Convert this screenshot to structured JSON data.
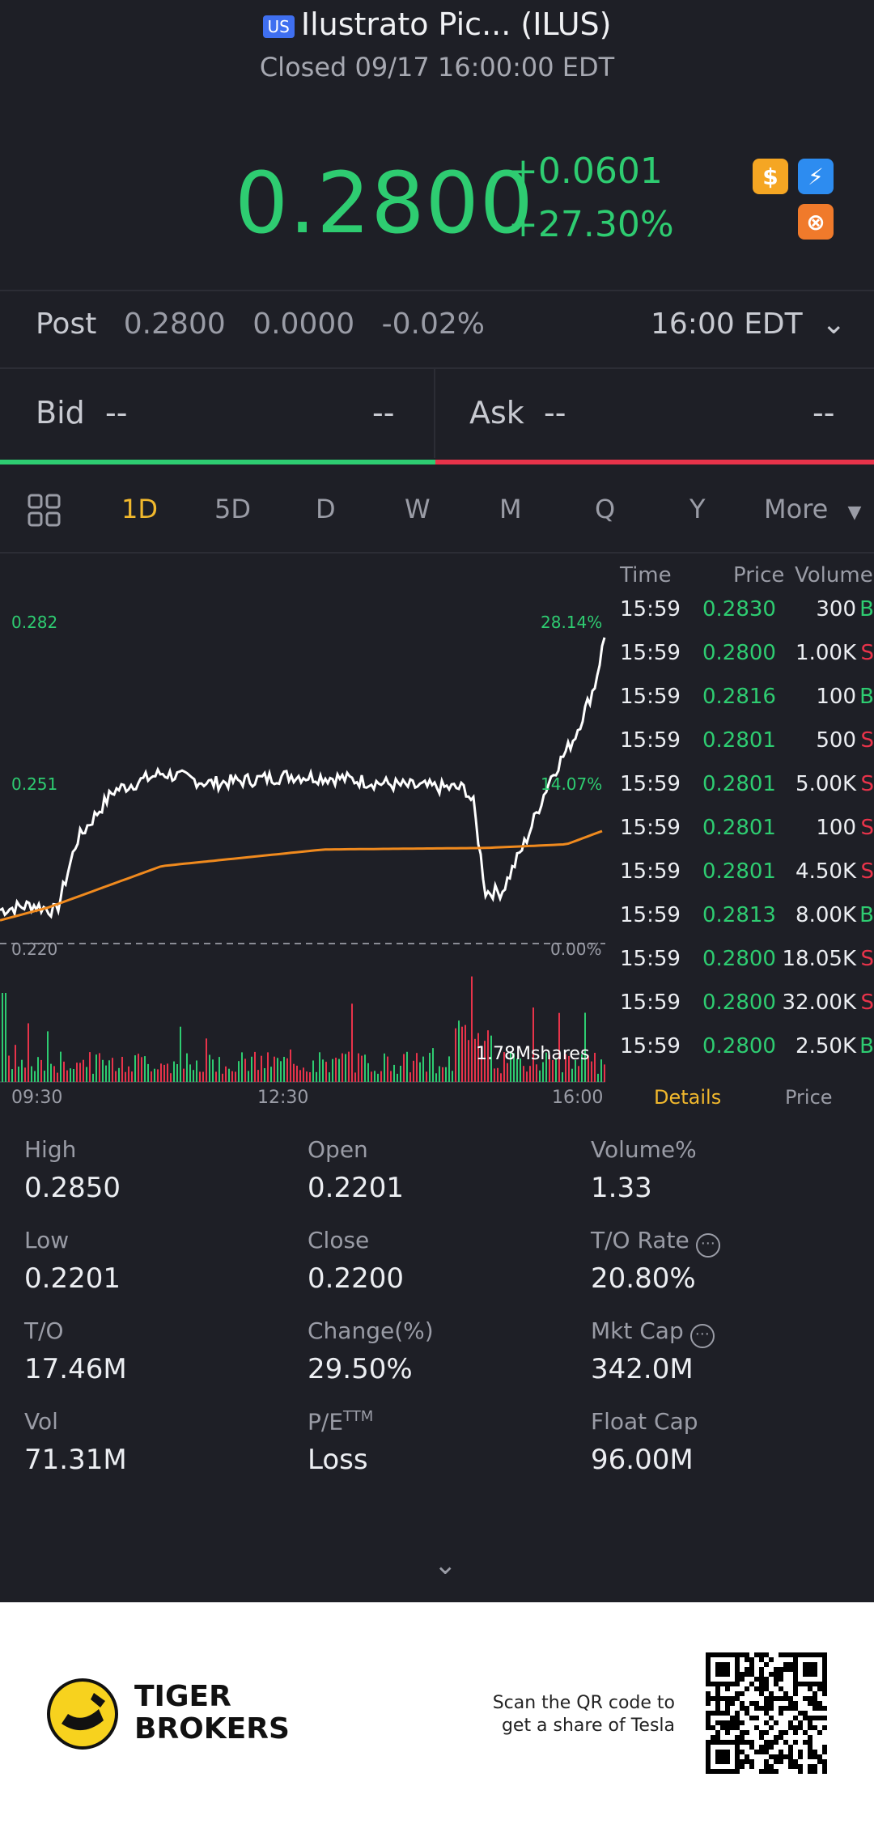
{
  "header": {
    "market_badge": "US",
    "title": "Ilustrato Pic... (ILUS)",
    "status": "Closed 09/17 16:00:00 EDT"
  },
  "quote": {
    "price": "0.2800",
    "change": "+0.0601",
    "change_pct": "+27.30%",
    "icons": [
      "dollar-icon",
      "lightning-icon",
      "basketball-icon"
    ]
  },
  "post": {
    "label": "Post",
    "price": "0.2800",
    "change": "0.0000",
    "change_pct": "-0.02%",
    "time": "16:00 EDT"
  },
  "bid": {
    "label": "Bid",
    "price": "--",
    "size": "--"
  },
  "ask": {
    "label": "Ask",
    "price": "--",
    "size": "--"
  },
  "tabs": [
    "1D",
    "5D",
    "D",
    "W",
    "M",
    "Q",
    "Y",
    "More"
  ],
  "active_tab": "1D",
  "chart": {
    "y_top": "0.282",
    "y_mid": "0.251",
    "y_bottom": "0.220",
    "pct_top": "28.14%",
    "pct_mid": "14.07%",
    "pct_bottom": "0.00%",
    "volume_label": "1.78Mshares",
    "x_labels": [
      "09:30",
      "12:30",
      "16:00"
    ]
  },
  "ticks": {
    "headers": [
      "Time",
      "Price",
      "Volume"
    ],
    "rows": [
      {
        "time": "15:59",
        "price": "0.2830",
        "volume": "300",
        "side": "B"
      },
      {
        "time": "15:59",
        "price": "0.2800",
        "volume": "1.00K",
        "side": "S"
      },
      {
        "time": "15:59",
        "price": "0.2816",
        "volume": "100",
        "side": "B"
      },
      {
        "time": "15:59",
        "price": "0.2801",
        "volume": "500",
        "side": "S"
      },
      {
        "time": "15:59",
        "price": "0.2801",
        "volume": "5.00K",
        "side": "S"
      },
      {
        "time": "15:59",
        "price": "0.2801",
        "volume": "100",
        "side": "S"
      },
      {
        "time": "15:59",
        "price": "0.2801",
        "volume": "4.50K",
        "side": "S"
      },
      {
        "time": "15:59",
        "price": "0.2813",
        "volume": "8.00K",
        "side": "B"
      },
      {
        "time": "15:59",
        "price": "0.2800",
        "volume": "18.05K",
        "side": "S"
      },
      {
        "time": "15:59",
        "price": "0.2800",
        "volume": "32.00K",
        "side": "S"
      },
      {
        "time": "15:59",
        "price": "0.2800",
        "volume": "2.50K",
        "side": "B"
      }
    ],
    "tab_details": "Details",
    "tab_price": "Price"
  },
  "stats": [
    {
      "label": "High",
      "value": "0.2850"
    },
    {
      "label": "Open",
      "value": "0.2201"
    },
    {
      "label": "Volume%",
      "value": "1.33"
    },
    {
      "label": "Low",
      "value": "0.2201"
    },
    {
      "label": "Close",
      "value": "0.2200"
    },
    {
      "label": "T/O Rate",
      "value": "20.80%"
    },
    {
      "label": "T/O",
      "value": "17.46M"
    },
    {
      "label": "Change(%)",
      "value": "29.50%"
    },
    {
      "label": "Mkt Cap",
      "value": "342.0M"
    },
    {
      "label": "Vol",
      "value": "71.31M"
    },
    {
      "label": "P/E",
      "label_sup": "TTM",
      "value": "Loss"
    },
    {
      "label": "Float Cap",
      "value": "96.00M"
    }
  ],
  "footer": {
    "brand_line1": "TIGER",
    "brand_line2": "BROKERS",
    "promo_line1": "Scan the QR code to",
    "promo_line2": "get a share of Tesla"
  },
  "colors": {
    "background": "#1e1f26",
    "up": "#2ecc71",
    "down": "#e8334a",
    "accent": "#f1b82d",
    "avg_line": "#f08a1e"
  }
}
